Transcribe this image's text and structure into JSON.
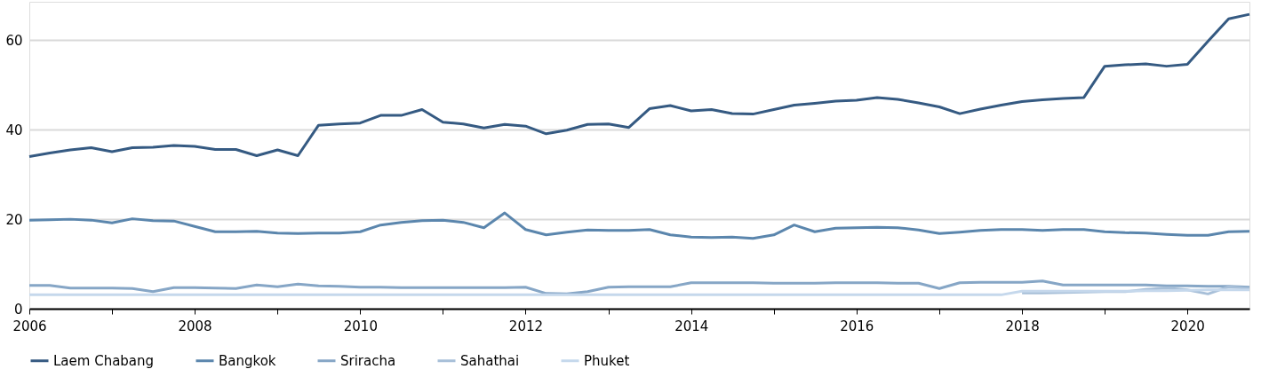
{
  "chart_data": {
    "type": "line",
    "x": [
      "2006-01",
      "2006-04",
      "2006-07",
      "2006-10",
      "2007-01",
      "2007-04",
      "2007-07",
      "2007-10",
      "2008-01",
      "2008-04",
      "2008-07",
      "2008-10",
      "2009-01",
      "2009-04",
      "2009-07",
      "2009-10",
      "2010-01",
      "2010-04",
      "2010-07",
      "2010-10",
      "2011-01",
      "2011-04",
      "2011-07",
      "2011-10",
      "2012-01",
      "2012-04",
      "2012-07",
      "2012-10",
      "2013-01",
      "2013-04",
      "2013-07",
      "2013-10",
      "2014-01",
      "2014-04",
      "2014-07",
      "2014-10",
      "2015-01",
      "2015-04",
      "2015-07",
      "2015-10",
      "2016-01",
      "2016-04",
      "2016-07",
      "2016-10",
      "2017-01",
      "2017-04",
      "2017-07",
      "2017-10",
      "2018-01",
      "2018-04",
      "2018-07",
      "2018-10",
      "2019-01",
      "2019-04",
      "2019-07",
      "2019-10",
      "2020-01",
      "2020-04",
      "2020-07",
      "2020-10"
    ],
    "series": [
      {
        "name": "Laem Chabang",
        "color": "#355a82",
        "values": [
          34,
          34.8,
          35.5,
          36,
          35.1,
          36,
          36.1,
          36.5,
          36.3,
          35.6,
          35.6,
          34.2,
          35.5,
          34.2,
          41,
          41.3,
          41.5,
          43.2,
          43.2,
          44.5,
          41.7,
          41.3,
          40.4,
          41.2,
          40.8,
          39.1,
          39.9,
          41.2,
          41.3,
          40.5,
          44.7,
          45.4,
          44.2,
          44.5,
          43.6,
          43.5,
          44.5,
          45.5,
          45.9,
          46.4,
          46.6,
          47.2,
          46.8,
          46,
          45.1,
          43.6,
          44.6,
          45.5,
          46.3,
          46.7,
          47,
          47.2,
          54.2,
          54.5,
          54.7,
          54.2,
          54.6,
          59.8,
          64.8,
          65.8
        ]
      },
      {
        "name": "Bangkok",
        "color": "#5b86ad",
        "values": [
          19.8,
          19.9,
          20,
          19.8,
          19.2,
          20.1,
          19.7,
          19.6,
          18.4,
          17.2,
          17.2,
          17.3,
          16.9,
          16.8,
          16.9,
          16.9,
          17.2,
          18.7,
          19.3,
          19.7,
          19.8,
          19.3,
          18.1,
          21.4,
          17.7,
          16.5,
          17.1,
          17.6,
          17.5,
          17.5,
          17.7,
          16.5,
          16,
          15.9,
          16,
          15.7,
          16.5,
          18.7,
          17.2,
          18,
          18.1,
          18.2,
          18.1,
          17.6,
          16.8,
          17.1,
          17.5,
          17.7,
          17.7,
          17.5,
          17.7,
          17.7,
          17.2,
          17,
          16.9,
          16.6,
          16.4,
          16.4,
          17.2,
          17.3
        ]
      },
      {
        "name": "Sriracha",
        "color": "#86a6c6",
        "values": [
          5.2,
          5.2,
          4.6,
          4.6,
          4.6,
          4.5,
          3.8,
          4.7,
          4.7,
          4.6,
          4.5,
          5.3,
          4.9,
          5.5,
          5.1,
          5,
          4.8,
          4.8,
          4.7,
          4.7,
          4.7,
          4.7,
          4.7,
          4.7,
          4.8,
          3.4,
          3.3,
          3.8,
          4.8,
          4.9,
          4.9,
          4.9,
          5.8,
          5.8,
          5.8,
          5.8,
          5.7,
          5.7,
          5.7,
          5.8,
          5.8,
          5.8,
          5.7,
          5.7,
          4.5,
          5.8,
          5.9,
          5.9,
          5.9,
          6.2,
          5.3,
          5.3,
          5.3,
          5.3,
          5.3,
          5.1,
          5.1,
          5,
          5,
          4.8
        ]
      },
      {
        "name": "Sahathai",
        "color": "#a7bfd8",
        "x": [
          "2018-01",
          "2018-04",
          "2018-07",
          "2018-10",
          "2019-01",
          "2019-04",
          "2019-07",
          "2019-10",
          "2020-01",
          "2020-04",
          "2020-07",
          "2020-10"
        ],
        "values": [
          3.5,
          3.5,
          3.6,
          3.7,
          3.8,
          3.8,
          4.3,
          4.6,
          4.2,
          3.3,
          4.9,
          4.5
        ]
      },
      {
        "name": "Phuket",
        "color": "#c5d8ec",
        "values": [
          3.1,
          3.1,
          3.1,
          3.1,
          3.1,
          3.1,
          3.1,
          3.1,
          3.1,
          3.1,
          3.1,
          3.1,
          3.1,
          3.1,
          3.1,
          3.1,
          3.1,
          3.1,
          3.1,
          3.1,
          3.1,
          3.1,
          3.1,
          3.1,
          3.1,
          3.1,
          3.1,
          3.1,
          3.1,
          3.1,
          3.1,
          3.1,
          3.1,
          3.1,
          3.1,
          3.1,
          3.1,
          3.1,
          3.1,
          3.1,
          3.1,
          3.1,
          3.1,
          3.1,
          3.1,
          3.1,
          3.1,
          3.1,
          3.9,
          3.9,
          3.9,
          3.9,
          3.9,
          3.9,
          4,
          4,
          4.1,
          4.2,
          4.2,
          4.2
        ]
      }
    ],
    "xlim": [
      "2006-01",
      "2020-10"
    ],
    "xticks": [
      "2006",
      {
        "value": "2007",
        "label": null
      },
      "2008",
      {
        "value": "2009",
        "label": null
      },
      "2010",
      {
        "value": "2011",
        "label": null
      },
      "2012",
      {
        "value": "2013",
        "label": null
      },
      "2014",
      {
        "value": "2015",
        "label": null
      },
      "2016",
      {
        "value": "2017",
        "label": null
      },
      "2018",
      {
        "value": "2019",
        "label": null
      },
      "2020"
    ],
    "ylim": [
      0,
      68.6
    ],
    "yticks": [
      0,
      20,
      40,
      60
    ],
    "grid": "y",
    "legend": "bottom"
  }
}
